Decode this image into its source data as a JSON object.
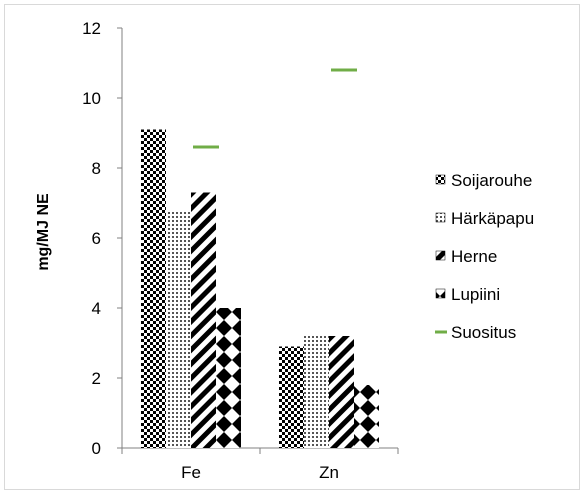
{
  "chart_data": {
    "type": "bar",
    "categories": [
      "Fe",
      "Zn"
    ],
    "series": [
      {
        "name": "Soijarouhe",
        "values": [
          9.1,
          2.9
        ],
        "pattern": "checker"
      },
      {
        "name": "Härkäpapu",
        "values": [
          6.8,
          3.2
        ],
        "pattern": "dots"
      },
      {
        "name": "Herne",
        "values": [
          7.3,
          3.2
        ],
        "pattern": "diagonal"
      },
      {
        "name": "Lupiini",
        "values": [
          4.0,
          1.8
        ],
        "pattern": "bowtie"
      }
    ],
    "markers": {
      "name": "Suositus",
      "values": [
        8.6,
        10.8
      ],
      "color": "#70ad47"
    },
    "ylabel": "mg/MJ NE",
    "xlabel": "",
    "ylim": [
      0,
      12
    ],
    "yticks": [
      "0",
      "2",
      "4",
      "6",
      "8",
      "10",
      "12"
    ],
    "grid": false,
    "legend_position": "right"
  }
}
